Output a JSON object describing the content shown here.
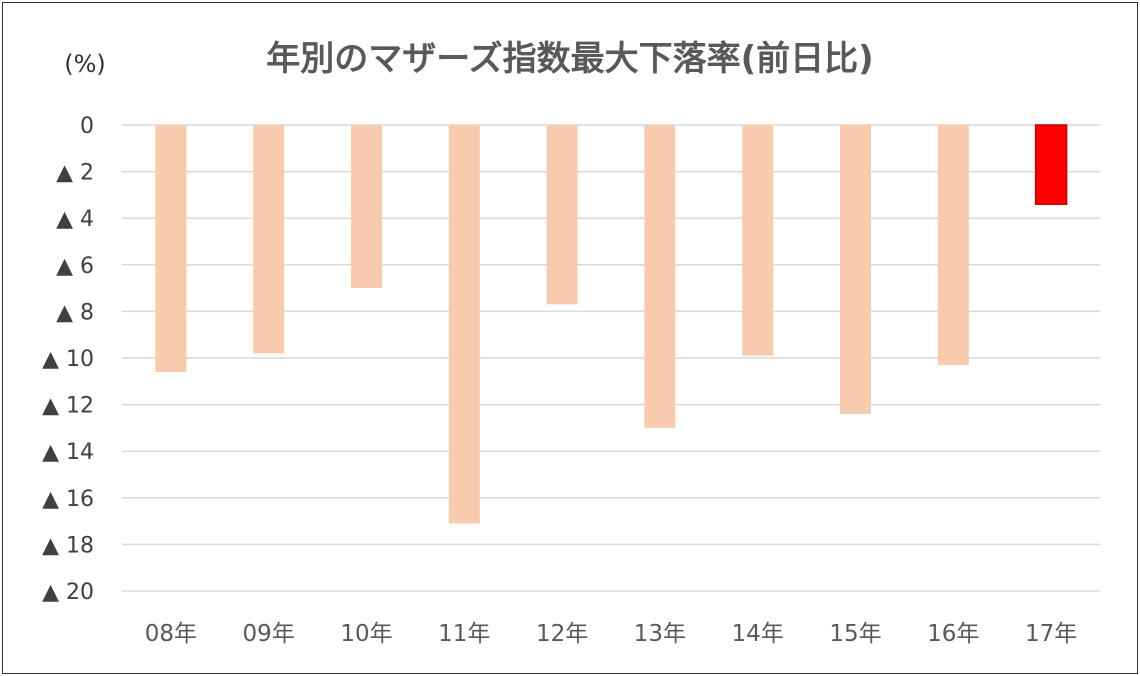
{
  "chart_data": {
    "type": "bar",
    "title": "年別のマザーズ指数最大下落率(前日比)",
    "unit_label": "(%)",
    "categories": [
      "08年",
      "09年",
      "10年",
      "11年",
      "12年",
      "13年",
      "14年",
      "15年",
      "16年",
      "17年"
    ],
    "series": [
      {
        "values": [
          -10.6,
          -9.8,
          -7.0,
          -17.1,
          -7.7,
          -13.0,
          -9.9,
          -12.4,
          -10.3,
          -3.4
        ]
      }
    ],
    "y_ticks": [
      "0",
      "▲ 2",
      "▲ 4",
      "▲ 6",
      "▲ 8",
      "▲ 10",
      "▲ 12",
      "▲ 14",
      "▲ 16",
      "▲ 18",
      "▲ 20"
    ],
    "ylim": [
      -20,
      0
    ],
    "grid": true,
    "legend": "none",
    "colors": {
      "default_bar": "#f8cbad",
      "highlight_bar": "#ff0000",
      "highlight_border": "#c00000"
    },
    "highlight_category": "17年"
  }
}
